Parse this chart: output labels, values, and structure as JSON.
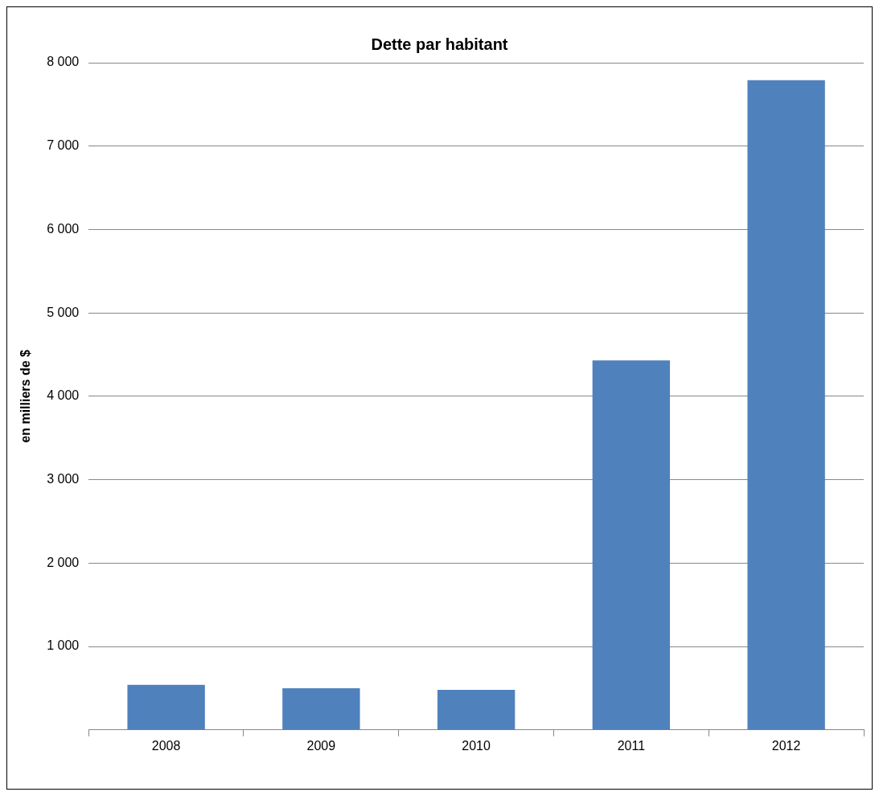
{
  "chart_data": {
    "type": "bar",
    "title": "Dette par habitant",
    "ylabel": "en milliers de $",
    "categories": [
      "2008",
      "2009",
      "2010",
      "2011",
      "2012"
    ],
    "values": [
      540,
      500,
      480,
      4430,
      7790
    ],
    "color": "#4f81bd",
    "ylim": [
      0,
      8000
    ],
    "yticks": [
      {
        "value": 1000,
        "label": "1 000"
      },
      {
        "value": 2000,
        "label": "2 000"
      },
      {
        "value": 3000,
        "label": "3 000"
      },
      {
        "value": 4000,
        "label": "4 000"
      },
      {
        "value": 5000,
        "label": "5 000"
      },
      {
        "value": 6000,
        "label": "6 000"
      },
      {
        "value": 7000,
        "label": "7 000"
      },
      {
        "value": 8000,
        "label": "8 000"
      }
    ],
    "grid": "y",
    "legend": false
  }
}
